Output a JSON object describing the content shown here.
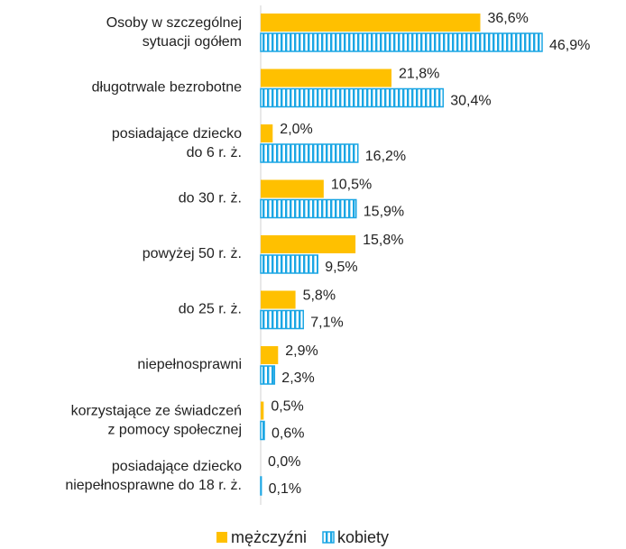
{
  "chart_data": {
    "type": "bar",
    "orientation": "horizontal",
    "categories": [
      "Osoby w szczególnej\nsytuacji ogółem",
      "długotrwale bezrobotne",
      "posiadające dziecko\ndo 6 r. ż.",
      "do 30 r. ż.",
      "powyżej 50 r. ż.",
      "do 25 r. ż.",
      "niepełnosprawni",
      "korzystające ze świadczeń\nz pomocy społecznej",
      "posiadające dziecko\nniepełnosprawne do 18 r. ż."
    ],
    "series": [
      {
        "name": "mężczyźni",
        "color": "#ffc000",
        "pattern": "solid",
        "values": [
          36.6,
          21.8,
          2.0,
          10.5,
          15.8,
          5.8,
          2.9,
          0.5,
          0.0
        ],
        "value_labels": [
          "36,6%",
          "21,8%",
          "2,0%",
          "10,5%",
          "15,8%",
          "5,8%",
          "2,9%",
          "0,5%",
          "0,0%"
        ]
      },
      {
        "name": "kobiety",
        "color": "#1aa6e4",
        "pattern": "vertical-stripes",
        "values": [
          46.9,
          30.4,
          16.2,
          15.9,
          9.5,
          7.1,
          2.3,
          0.6,
          0.1
        ],
        "value_labels": [
          "46,9%",
          "30,4%",
          "16,2%",
          "15,9%",
          "9,5%",
          "7,1%",
          "2,3%",
          "0,6%",
          "0,1%"
        ]
      }
    ],
    "legend": "bottom"
  }
}
